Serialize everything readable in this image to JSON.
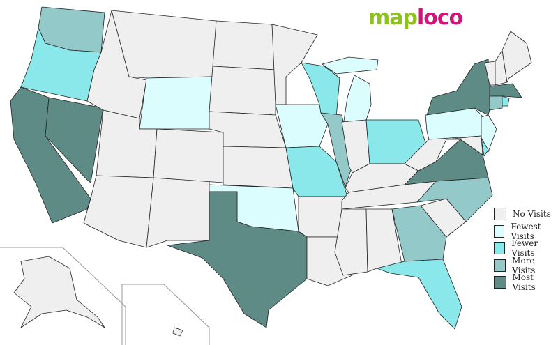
{
  "logo": {
    "part1": "map",
    "part2": "loco"
  },
  "legend": [
    {
      "key": "none",
      "label": "No Visits",
      "color": "#efefef"
    },
    {
      "key": "fewest",
      "label": "Fewest Visits",
      "color": "#dcfdfd"
    },
    {
      "key": "fewer",
      "label": "Fewer Visits",
      "color": "#8ae8ea"
    },
    {
      "key": "more",
      "label": "More Visits",
      "color": "#93c9c8"
    },
    {
      "key": "most",
      "label": "Most Visits",
      "color": "#5f8b87"
    }
  ],
  "states": {
    "WA": "more",
    "OR": "fewer",
    "CA": "most",
    "NV": "most",
    "ID": "none",
    "MT": "none",
    "WY": "fewest",
    "UT": "none",
    "AZ": "none",
    "NM": "none",
    "CO": "none",
    "ND": "none",
    "SD": "none",
    "NE": "none",
    "KS": "none",
    "OK": "fewest",
    "TX": "most",
    "MN": "none",
    "IA": "fewest",
    "MO": "fewer",
    "AR": "none",
    "LA": "none",
    "WI": "fewer",
    "IL": "more",
    "MI": "fewest",
    "IN": "none",
    "OH": "fewer",
    "KY": "none",
    "TN": "none",
    "MS": "none",
    "AL": "none",
    "GA": "more",
    "FL": "fewer",
    "SC": "none",
    "NC": "more",
    "VA": "most",
    "WV": "none",
    "PA": "fewest",
    "NY": "most",
    "NJ": "fewest",
    "MD": "none",
    "DE": "fewer",
    "ME": "none",
    "NH": "none",
    "VT": "none",
    "MA": "most",
    "CT": "more",
    "RI": "fewer",
    "AK": "none",
    "HI": "none"
  }
}
